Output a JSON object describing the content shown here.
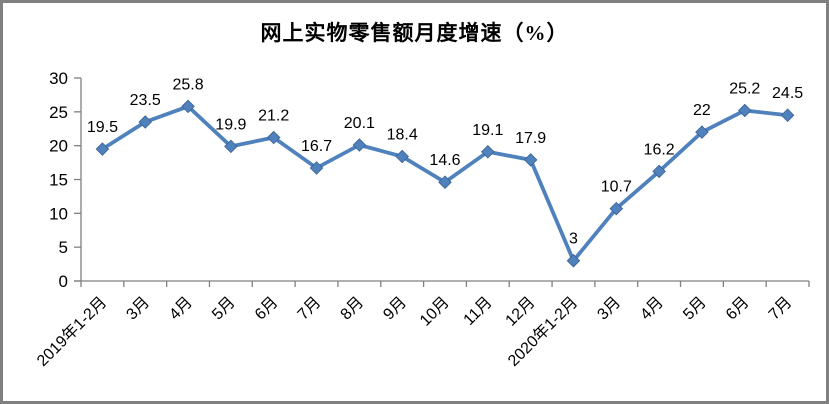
{
  "chart_data": {
    "type": "line",
    "title": "网上实物零售额月度增速（%）",
    "categories": [
      "2019年1-2月",
      "3月",
      "4月",
      "5月",
      "6月",
      "7月",
      "8月",
      "9月",
      "10月",
      "11月",
      "12月",
      "2020年1-2月",
      "3月",
      "4月",
      "5月",
      "6月",
      "7月"
    ],
    "values": [
      19.5,
      23.5,
      25.8,
      19.9,
      21.2,
      16.7,
      20.1,
      18.4,
      14.6,
      19.1,
      17.9,
      3,
      10.7,
      16.2,
      22,
      25.2,
      24.5
    ],
    "xlabel": "",
    "ylabel": "",
    "ylim": [
      0,
      30
    ],
    "yticks": [
      0,
      5,
      10,
      15,
      20,
      25,
      30
    ],
    "grid": false,
    "legend": "none",
    "data_labels_shown": true,
    "marker": "diamond",
    "colors": {
      "line": "#4F81BD",
      "marker_fill": "#4F81BD",
      "marker_stroke": "#3A6191",
      "axis": "#808080",
      "text": "#000000",
      "frame_border": "#808080",
      "background": "#FFFFFF"
    }
  }
}
